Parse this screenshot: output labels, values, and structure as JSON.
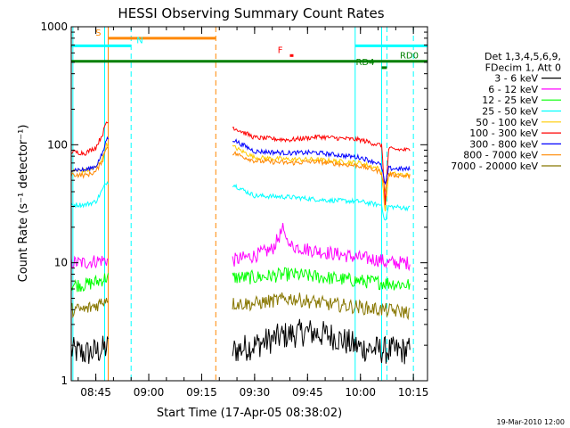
{
  "chart_data": {
    "type": "line",
    "title": "HESSI Observing Summary Count Rates",
    "xlabel": "Start Time (17-Apr-05 08:38:02)",
    "ylabel": "Count Rate (s⁻¹ detector⁻¹)",
    "footer": "19-Mar-2010 12:00",
    "yscale": "log",
    "ylim": [
      1,
      1000
    ],
    "y_ticks": [
      {
        "value": 1,
        "label": "1"
      },
      {
        "value": 10,
        "label": "10"
      },
      {
        "value": 100,
        "label": "100"
      },
      {
        "value": 1000,
        "label": "1000"
      }
    ],
    "xlim": [
      "08:38:02",
      "10:19:00"
    ],
    "x_ticks": [
      {
        "value": "08:45",
        "label": "08:45"
      },
      {
        "value": "09:00",
        "label": "09:00"
      },
      {
        "value": "09:15",
        "label": "09:15"
      },
      {
        "value": "09:30",
        "label": "09:30"
      },
      {
        "value": "09:45",
        "label": "09:45"
      },
      {
        "value": "10:00",
        "label": "10:00"
      },
      {
        "value": "10:15",
        "label": "10:15"
      }
    ],
    "grid": false,
    "legend_title": [
      "Det 1,3,4,5,6,9,",
      "FDecim 1, Att 0"
    ],
    "legend_position": "right",
    "series": [
      {
        "name": "3 - 6 keV",
        "color": "#000000",
        "points": [
          [
            "08:38",
            1.8
          ],
          [
            "08:42",
            1.7
          ],
          [
            "08:46",
            1.8
          ],
          [
            "08:48",
            1.9
          ],
          [
            "09:24",
            1.8
          ],
          [
            "09:30",
            2.0
          ],
          [
            "09:38",
            2.4
          ],
          [
            "09:45",
            2.6
          ],
          [
            "09:52",
            2.4
          ],
          [
            "10:00",
            1.9
          ],
          [
            "10:08",
            1.8
          ],
          [
            "10:14",
            1.8
          ]
        ]
      },
      {
        "name": "6 - 12 keV",
        "color": "#ff00ff",
        "points": [
          [
            "08:38",
            10
          ],
          [
            "08:42",
            10
          ],
          [
            "08:46",
            10.5
          ],
          [
            "09:24",
            10.5
          ],
          [
            "09:30",
            11.5
          ],
          [
            "09:35",
            13
          ],
          [
            "09:38",
            19
          ],
          [
            "09:40",
            14
          ],
          [
            "09:45",
            13
          ],
          [
            "09:52",
            12
          ],
          [
            "10:00",
            11
          ],
          [
            "10:06",
            10.5
          ],
          [
            "10:07",
            10
          ],
          [
            "10:14",
            10
          ]
        ]
      },
      {
        "name": "12 - 25 keV",
        "color": "#00ff00",
        "points": [
          [
            "08:38",
            6.5
          ],
          [
            "08:42",
            6.5
          ],
          [
            "08:46",
            7
          ],
          [
            "08:48",
            7.5
          ],
          [
            "09:24",
            7.5
          ],
          [
            "09:30",
            7.5
          ],
          [
            "09:40",
            8
          ],
          [
            "09:50",
            7.5
          ],
          [
            "10:00",
            7
          ],
          [
            "10:06",
            6.8
          ],
          [
            "10:14",
            6.5
          ]
        ]
      },
      {
        "name": "25 - 50 keV",
        "color": "#00ffff",
        "points": [
          [
            "08:38",
            31
          ],
          [
            "08:42",
            31
          ],
          [
            "08:45",
            33
          ],
          [
            "08:47",
            42
          ],
          [
            "08:48",
            48
          ],
          [
            "09:24",
            46
          ],
          [
            "09:27",
            41
          ],
          [
            "09:30",
            37
          ],
          [
            "09:40",
            36
          ],
          [
            "09:50",
            34
          ],
          [
            "10:00",
            33
          ],
          [
            "10:05",
            31
          ],
          [
            "10:06",
            31
          ],
          [
            "10:07",
            22
          ],
          [
            "10:08",
            30
          ],
          [
            "10:14",
            29
          ]
        ]
      },
      {
        "name": "50 - 100 keV",
        "color": "#ffcc00",
        "points": [
          [
            "08:38",
            60
          ],
          [
            "08:42",
            60
          ],
          [
            "08:45",
            64
          ],
          [
            "08:47",
            78
          ],
          [
            "08:48",
            100
          ],
          [
            "09:24",
            96
          ],
          [
            "09:30",
            78
          ],
          [
            "09:40",
            75
          ],
          [
            "09:47",
            75
          ],
          [
            "10:00",
            70
          ],
          [
            "10:05",
            63
          ],
          [
            "10:06",
            58
          ],
          [
            "10:07",
            27
          ],
          [
            "10:08",
            57
          ],
          [
            "10:14",
            55
          ]
        ]
      },
      {
        "name": "100 - 300 keV",
        "color": "#ff0000",
        "points": [
          [
            "08:38",
            87
          ],
          [
            "08:42",
            85
          ],
          [
            "08:45",
            95
          ],
          [
            "08:47",
            125
          ],
          [
            "08:48",
            155
          ],
          [
            "09:24",
            140
          ],
          [
            "09:30",
            115
          ],
          [
            "09:40",
            110
          ],
          [
            "09:48",
            117
          ],
          [
            "10:00",
            110
          ],
          [
            "10:05",
            100
          ],
          [
            "10:06",
            100
          ],
          [
            "10:07",
            32
          ],
          [
            "10:08",
            92
          ],
          [
            "10:14",
            90
          ]
        ]
      },
      {
        "name": "300 - 800 keV",
        "color": "#0000ff",
        "points": [
          [
            "08:38",
            62
          ],
          [
            "08:42",
            61
          ],
          [
            "08:45",
            66
          ],
          [
            "08:47",
            85
          ],
          [
            "08:48",
            112
          ],
          [
            "09:24",
            110
          ],
          [
            "09:30",
            88
          ],
          [
            "09:40",
            85
          ],
          [
            "09:47",
            86
          ],
          [
            "10:00",
            78
          ],
          [
            "10:05",
            70
          ],
          [
            "10:06",
            65
          ],
          [
            "10:07",
            45
          ],
          [
            "10:08",
            63
          ],
          [
            "10:14",
            62
          ]
        ]
      },
      {
        "name": "800 - 7000 keV",
        "color": "#ff8800",
        "points": [
          [
            "08:38",
            56
          ],
          [
            "08:42",
            55
          ],
          [
            "08:45",
            59
          ],
          [
            "08:47",
            75
          ],
          [
            "08:48",
            95
          ],
          [
            "09:24",
            85
          ],
          [
            "09:30",
            73
          ],
          [
            "09:40",
            70
          ],
          [
            "09:47",
            72
          ],
          [
            "10:00",
            66
          ],
          [
            "10:05",
            60
          ],
          [
            "10:06",
            58
          ],
          [
            "10:07",
            40
          ],
          [
            "10:08",
            56
          ],
          [
            "10:14",
            54
          ]
        ]
      },
      {
        "name": "7000 - 20000 keV",
        "color": "#887700",
        "points": [
          [
            "08:38",
            4
          ],
          [
            "08:42",
            4
          ],
          [
            "08:46",
            4.5
          ],
          [
            "08:48",
            5
          ],
          [
            "09:24",
            4.5
          ],
          [
            "09:30",
            4.5
          ],
          [
            "09:40",
            5
          ],
          [
            "09:50",
            4.5
          ],
          [
            "10:00",
            4.2
          ],
          [
            "10:06",
            4
          ],
          [
            "10:14",
            3.8
          ]
        ]
      }
    ],
    "vertical_lines": [
      {
        "x": "08:38:30",
        "color": "#00ffff",
        "style": "solid"
      },
      {
        "x": "08:47:30",
        "color": "#00ffff",
        "style": "solid"
      },
      {
        "x": "08:48:30",
        "color": "#ff8800",
        "style": "solid"
      },
      {
        "x": "08:55:00",
        "color": "#00ffff",
        "style": "dashed"
      },
      {
        "x": "09:19:00",
        "color": "#ff8800",
        "style": "dashed"
      },
      {
        "x": "09:58:30",
        "color": "#00ffff",
        "style": "solid"
      },
      {
        "x": "10:06:00",
        "color": "#00ffff",
        "style": "solid"
      },
      {
        "x": "10:07:30",
        "color": "#00ffff",
        "style": "dashed"
      },
      {
        "x": "10:15:00",
        "color": "#00ffff",
        "style": "dashed"
      }
    ],
    "flag_bars": [
      {
        "label": "S",
        "color": "#ff8800",
        "start": "08:48:30",
        "end": "09:19:00",
        "y": 800,
        "label_side": "left"
      },
      {
        "label": "N",
        "color": "#00ffff",
        "start": "08:38:02",
        "end": "08:55:00",
        "y": 690,
        "label_side": "right"
      },
      {
        "label": "F",
        "color": "#ff0000",
        "start": "09:40:00",
        "end": "09:41:00",
        "y": 570,
        "label_side": "left"
      },
      {
        "label": "",
        "color": "#00ffff",
        "start": "09:58:30",
        "end": "10:19:00",
        "y": 690,
        "label_side": "none"
      },
      {
        "label": "RD0",
        "color": "#008000",
        "start": "08:38:02",
        "end": "10:19:00",
        "y": 510,
        "label_side": "right_inside"
      },
      {
        "label": "RD4",
        "color": "#008000",
        "start": "10:06:00",
        "end": "10:07:30",
        "y": 450,
        "label_side": "left"
      }
    ]
  }
}
